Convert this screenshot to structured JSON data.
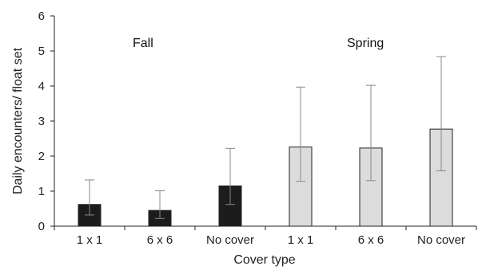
{
  "chart_data": {
    "type": "bar",
    "title": "",
    "xlabel": "Cover type",
    "ylabel": "Daily encounters/ float set",
    "ylim": [
      0,
      6
    ],
    "yticks": [
      "0",
      "1",
      "2",
      "3",
      "4",
      "5",
      "6"
    ],
    "categories": [
      "1 x 1",
      "6 x 6",
      "No cover",
      "1 x 1",
      "6 x 6",
      "No cover"
    ],
    "values": [
      0.62,
      0.45,
      1.15,
      2.26,
      2.23,
      2.77
    ],
    "error_low": [
      0.32,
      0.22,
      0.62,
      1.28,
      1.3,
      1.58
    ],
    "error_high": [
      1.32,
      1.01,
      2.22,
      3.97,
      4.02,
      4.84
    ],
    "groups": [
      {
        "name": "Fall",
        "indices": [
          0,
          1,
          2
        ],
        "color": "#1c1c1c"
      },
      {
        "name": "Spring",
        "indices": [
          3,
          4,
          5
        ],
        "color": "#dcdcdc"
      }
    ],
    "annotations": [
      "Fall",
      "Spring"
    ],
    "grid": false,
    "legend": "none"
  }
}
